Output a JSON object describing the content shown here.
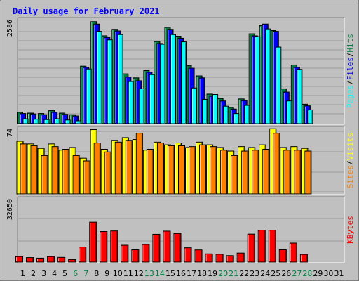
{
  "chart_data": {
    "type": "bar",
    "title": "Daily usage for February 2021",
    "x": [
      "1",
      "2",
      "3",
      "4",
      "5",
      "6",
      "7",
      "8",
      "9",
      "10",
      "11",
      "12",
      "13",
      "14",
      "15",
      "16",
      "17",
      "18",
      "19",
      "20",
      "21",
      "22",
      "23",
      "24",
      "25",
      "26",
      "27",
      "28",
      "29",
      "30",
      "31"
    ],
    "weekend_days": [
      6,
      7,
      13,
      14,
      20,
      21,
      27,
      28
    ],
    "panels": [
      {
        "name": "top",
        "scale_max": 2586,
        "right_labels": [
          "Pages",
          "/",
          "Files",
          "/",
          "Hits"
        ],
        "series": [
          {
            "name": "Hits",
            "color": "#008040",
            "values": [
              280,
              260,
              250,
              320,
              260,
              220,
              1420,
              2520,
              2170,
              2330,
              1230,
              1130,
              1310,
              2030,
              2380,
              2160,
              1430,
              1180,
              730,
              620,
              400,
              610,
              2220,
              2420,
              2300,
              860,
              1450,
              480,
              0,
              0,
              0
            ]
          },
          {
            "name": "Files",
            "color": "#0000ff",
            "values": [
              250,
              240,
              220,
              280,
              230,
              190,
              1390,
              2460,
              2130,
              2290,
              1150,
              1060,
              1270,
              1980,
              2330,
              2110,
              1370,
              1130,
              680,
              560,
              360,
              570,
              2170,
              2460,
              2280,
              780,
              1390,
              440,
              0,
              0,
              0
            ]
          },
          {
            "name": "Pages",
            "color": "#00ffff",
            "values": [
              120,
              110,
              100,
              120,
              90,
              70,
              1350,
              2280,
              2070,
              2200,
              1040,
              860,
              1210,
              1960,
              2200,
              2020,
              880,
              600,
              720,
              430,
              250,
              450,
              2150,
              2340,
              1890,
              560,
              1340,
              340,
              0,
              0,
              0
            ]
          }
        ]
      },
      {
        "name": "middle",
        "scale_max": 74,
        "right_labels": [
          "Sites",
          "/",
          "Visits"
        ],
        "series": [
          {
            "name": "Visits",
            "color": "#ffff00",
            "values": [
              59,
              56,
              51,
              56,
              49,
              52,
              40,
              72,
              50,
              60,
              63,
              61,
              49,
              58,
              55,
              57,
              52,
              58,
              55,
              52,
              48,
              53,
              52,
              55,
              73,
              52,
              53,
              51,
              0,
              0,
              0
            ]
          },
          {
            "name": "Sites",
            "color": "#ff8000",
            "values": [
              56,
              54,
              43,
              53,
              50,
              43,
              37,
              57,
              47,
              58,
              60,
              68,
              50,
              57,
              54,
              54,
              53,
              55,
              53,
              49,
              43,
              48,
              49,
              50,
              68,
              49,
              49,
              48,
              0,
              0,
              0
            ]
          }
        ]
      },
      {
        "name": "bottom",
        "scale_max": 32650,
        "right_labels": [
          "KBytes"
        ],
        "series": [
          {
            "name": "KBytes",
            "color": "#ff0000",
            "values": [
              2800,
              2300,
              2000,
              2800,
              2400,
              1300,
              7700,
              20400,
              15600,
              15900,
              8600,
              6300,
              9000,
              14200,
              15800,
              14600,
              7300,
              6200,
              4200,
              4000,
              3300,
              4600,
              14300,
              16300,
              16300,
              6300,
              9700,
              3900,
              0,
              0,
              0
            ]
          }
        ]
      }
    ],
    "colors": {
      "background": "#c0c0c0",
      "title": "#0000ff",
      "day_label": "#000000",
      "weekend_label": "#008040"
    }
  }
}
